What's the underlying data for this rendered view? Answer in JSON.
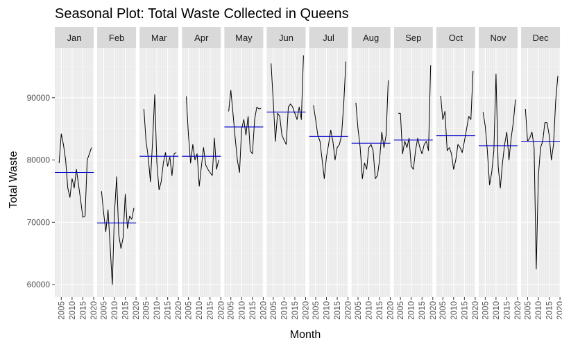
{
  "chart_data": {
    "type": "line",
    "title": "Seasonal Plot: Total Waste Collected in Queens",
    "xlabel": "Month",
    "ylabel": "Total Waste",
    "ylim": [
      58000,
      98000
    ],
    "y_ticks": [
      60000,
      70000,
      80000,
      90000
    ],
    "y_tick_labels": [
      "60000",
      "70000",
      "80000",
      "90000"
    ],
    "x_range": [
      2002,
      2020
    ],
    "x_ticks": [
      2005,
      2010,
      2015,
      2020
    ],
    "x_tick_labels": [
      "2005",
      "2010",
      "2015",
      "2020"
    ],
    "grid": true,
    "mean_line_color": "#0000cc",
    "series_color": "#000000",
    "panel_bg": "#ebebeb",
    "strip_bg": "#d9d9d9",
    "panels": [
      {
        "month": "Jan",
        "mean": 78000,
        "x": [
          2004,
          2005,
          2006,
          2007,
          2008,
          2009,
          2010,
          2011,
          2012,
          2013,
          2014,
          2015,
          2016,
          2017,
          2018,
          2019
        ],
        "y": [
          79500,
          84200,
          82500,
          80000,
          75500,
          74000,
          77000,
          75500,
          78500,
          76000,
          73500,
          70800,
          71000,
          80000,
          81000,
          82000
        ]
      },
      {
        "month": "Feb",
        "mean": 69900,
        "x": [
          2004,
          2005,
          2006,
          2007,
          2008,
          2009,
          2010,
          2011,
          2012,
          2013,
          2014,
          2015,
          2016,
          2017,
          2018,
          2019
        ],
        "y": [
          75000,
          71500,
          68500,
          72000,
          66000,
          60000,
          71500,
          77300,
          68000,
          65800,
          67500,
          74500,
          69000,
          71000,
          70500,
          72300
        ]
      },
      {
        "month": "Mar",
        "mean": 80600,
        "x": [
          2004,
          2005,
          2006,
          2007,
          2008,
          2009,
          2010,
          2011,
          2012,
          2013,
          2014,
          2015,
          2016,
          2017,
          2018,
          2019
        ],
        "y": [
          88200,
          83000,
          80500,
          76500,
          83000,
          90500,
          79500,
          75200,
          76500,
          79500,
          81200,
          79000,
          80500,
          77500,
          81000,
          81200
        ]
      },
      {
        "month": "Apr",
        "mean": 80600,
        "x": [
          2004,
          2005,
          2006,
          2007,
          2008,
          2009,
          2010,
          2011,
          2012,
          2013,
          2014,
          2015,
          2016,
          2017,
          2018,
          2019
        ],
        "y": [
          90200,
          84000,
          79500,
          82500,
          80000,
          81000,
          75800,
          79000,
          82000,
          79200,
          78500,
          78000,
          77500,
          83500,
          78500,
          80000
        ]
      },
      {
        "month": "May",
        "mean": 85300,
        "x": [
          2004,
          2005,
          2006,
          2007,
          2008,
          2009,
          2010,
          2011,
          2012,
          2013,
          2014,
          2015,
          2016,
          2017,
          2018,
          2019
        ],
        "y": [
          87800,
          91200,
          87500,
          83500,
          80000,
          78000,
          85000,
          86500,
          84000,
          87000,
          81500,
          81000,
          86500,
          88500,
          88200,
          88300
        ]
      },
      {
        "month": "Jun",
        "mean": 87700,
        "x": [
          2004,
          2005,
          2006,
          2007,
          2008,
          2009,
          2010,
          2011,
          2012,
          2013,
          2014,
          2015,
          2016,
          2017,
          2018,
          2019
        ],
        "y": [
          95500,
          89500,
          83000,
          87500,
          87000,
          84000,
          83200,
          82500,
          88500,
          89000,
          88500,
          87500,
          86500,
          88500,
          86500,
          96800
        ]
      },
      {
        "month": "Jul",
        "mean": 83800,
        "x": [
          2004,
          2005,
          2006,
          2007,
          2008,
          2009,
          2010,
          2011,
          2012,
          2013,
          2014,
          2015,
          2016,
          2017,
          2018,
          2019
        ],
        "y": [
          88800,
          86500,
          84000,
          83000,
          80000,
          77000,
          80500,
          82500,
          84800,
          83000,
          80000,
          82000,
          82500,
          84000,
          89000,
          95800
        ]
      },
      {
        "month": "Aug",
        "mean": 82700,
        "x": [
          2004,
          2005,
          2006,
          2007,
          2008,
          2009,
          2010,
          2011,
          2012,
          2013,
          2014,
          2015,
          2016,
          2017,
          2018,
          2019
        ],
        "y": [
          89200,
          85000,
          82000,
          77000,
          79500,
          78500,
          82000,
          82500,
          81500,
          77000,
          77500,
          80000,
          84500,
          82000,
          84000,
          92800
        ]
      },
      {
        "month": "Sep",
        "mean": 83200,
        "x": [
          2004,
          2005,
          2006,
          2007,
          2008,
          2009,
          2010,
          2011,
          2012,
          2013,
          2014,
          2015,
          2016,
          2017,
          2018,
          2019
        ],
        "y": [
          87500,
          87500,
          81000,
          83000,
          82000,
          83500,
          79000,
          78500,
          81500,
          83500,
          82000,
          81000,
          82500,
          83000,
          81500,
          95200
        ]
      },
      {
        "month": "Oct",
        "mean": 83900,
        "x": [
          2004,
          2005,
          2006,
          2007,
          2008,
          2009,
          2010,
          2011,
          2012,
          2013,
          2014,
          2015,
          2016,
          2017,
          2018,
          2019
        ],
        "y": [
          90300,
          86500,
          87800,
          81500,
          82000,
          81000,
          78500,
          80000,
          82500,
          82000,
          81200,
          83000,
          85000,
          87000,
          86500,
          94300
        ]
      },
      {
        "month": "Nov",
        "mean": 82300,
        "x": [
          2004,
          2005,
          2006,
          2007,
          2008,
          2009,
          2010,
          2011,
          2012,
          2013,
          2014,
          2015,
          2016,
          2017,
          2018,
          2019
        ],
        "y": [
          87700,
          85500,
          81500,
          76000,
          78000,
          81500,
          93800,
          79000,
          75500,
          79500,
          82500,
          84500,
          80000,
          83500,
          86000,
          89700
        ]
      },
      {
        "month": "Dec",
        "mean": 83000,
        "x": [
          2004,
          2005,
          2006,
          2007,
          2008,
          2009,
          2010,
          2011,
          2012,
          2013,
          2014,
          2015,
          2016,
          2017,
          2018,
          2019
        ],
        "y": [
          88200,
          83000,
          83500,
          84500,
          82000,
          62500,
          77500,
          82000,
          83000,
          86000,
          86000,
          84000,
          80000,
          82500,
          89500,
          93500
        ]
      }
    ]
  }
}
